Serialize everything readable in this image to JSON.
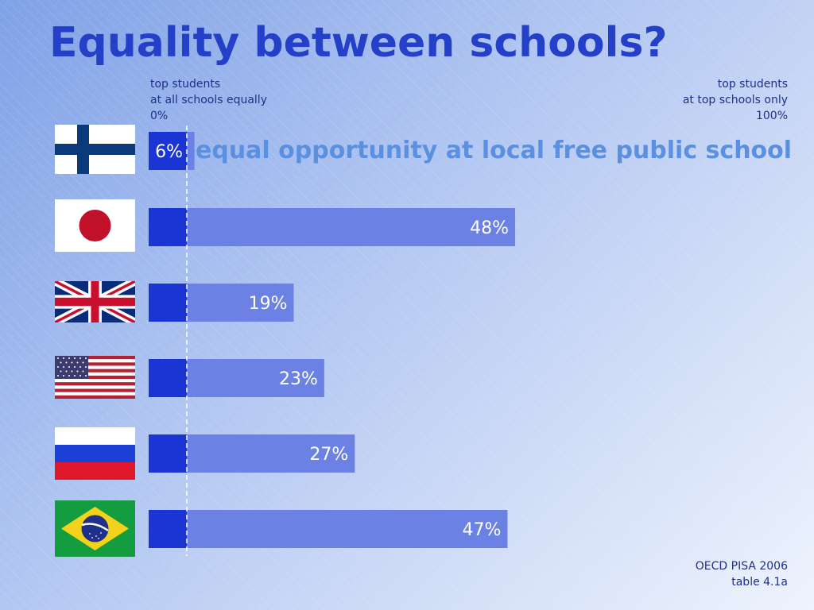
{
  "title": "Equality between schools?",
  "axis": {
    "left": [
      "top students",
      "at all schools equally",
      "0%"
    ],
    "right": [
      "top students",
      "at top schools only",
      "100%"
    ]
  },
  "annotation": "equal opportunity at local free public school",
  "source": [
    "OECD PISA 2006",
    "table 4.1a"
  ],
  "flags": [
    "finland-flag",
    "japan-flag",
    "uk-flag",
    "usa-flag",
    "russia-flag",
    "brazil-flag"
  ],
  "colors": {
    "title": "#2440c8",
    "bar_base": "#1a35d4",
    "bar": "#6b82e4",
    "annotation": "#5b8fe0"
  },
  "chart_data": {
    "type": "bar",
    "orientation": "horizontal",
    "categories": [
      "",
      "",
      "",
      "",
      "",
      ""
    ],
    "values": [
      6,
      48,
      19,
      23,
      27,
      47
    ],
    "data_labels": [
      "6%",
      "48%",
      "19%",
      "23%",
      "27%",
      "47%"
    ],
    "xlim": [
      0,
      100
    ],
    "grid": false,
    "title": "Equality between schools?"
  }
}
